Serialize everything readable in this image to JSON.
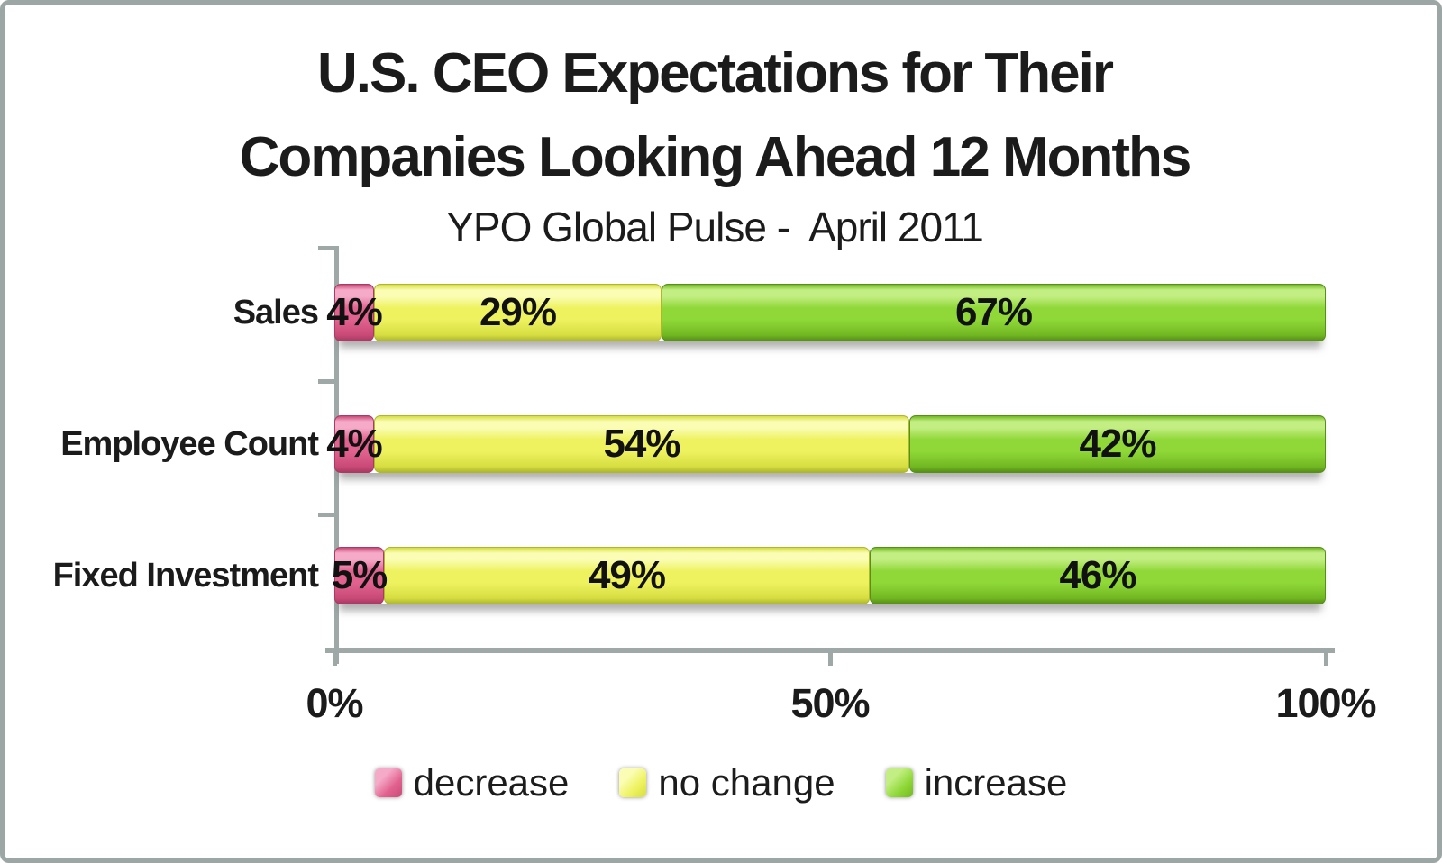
{
  "title": {
    "line1": "U.S. CEO Expectations for Their",
    "line2": "Companies Looking Ahead 12 Months",
    "subtitle": "YPO Global Pulse -  April 2011"
  },
  "frame": {
    "border_color": "#9CA6A4",
    "axis_color": "#9EA9A7",
    "text_color": "#1b1b1b"
  },
  "chart_data": {
    "type": "bar",
    "orientation": "horizontal-stacked",
    "title": "U.S. CEO Expectations for Their Companies Looking Ahead 12 Months",
    "subtitle": "YPO Global Pulse - April 2011",
    "categories": [
      "Sales",
      "Employee Count",
      "Fixed Investment"
    ],
    "series": [
      {
        "name": "decrease",
        "color": "#E2628F",
        "highlight": "#F5ABC8",
        "shade": "#C94A77",
        "edge": "#A93A63",
        "values": [
          4,
          4,
          5
        ]
      },
      {
        "name": "no change",
        "color": "#EEF25F",
        "highlight": "#FBFDB4",
        "shade": "#D6DE41",
        "edge": "#AEB72E",
        "values": [
          29,
          54,
          49
        ]
      },
      {
        "name": "increase",
        "color": "#8FD838",
        "highlight": "#C3EE83",
        "shade": "#72B822",
        "edge": "#578F18",
        "values": [
          67,
          42,
          46
        ]
      }
    ],
    "value_label_suffix": "%",
    "xlabel": "",
    "ylabel": "",
    "x_ticks": [
      "0%",
      "50%",
      "100%"
    ],
    "xlim": [
      0,
      100
    ],
    "grid": false,
    "legend": [
      "decrease",
      "no change",
      "increase"
    ],
    "legend_position": "bottom"
  }
}
